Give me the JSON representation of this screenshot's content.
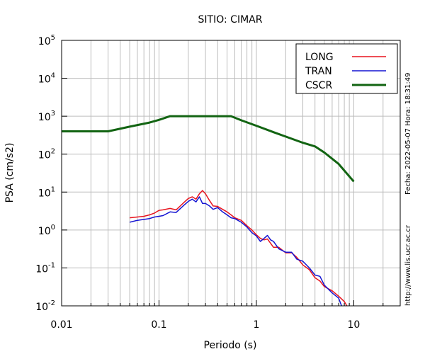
{
  "chart_data": {
    "type": "line",
    "title": "SITIO: CIMAR",
    "xlabel": "Periodo (s)",
    "ylabel": "PSA (cm/s2)",
    "x_scale": "log",
    "y_scale": "log",
    "xlim": [
      0.01,
      30
    ],
    "ylim": [
      0.01,
      100000
    ],
    "x_ticks": [
      {
        "value": 0.01,
        "label": "0.01"
      },
      {
        "value": 0.1,
        "label": "0.1"
      },
      {
        "value": 1,
        "label": "1"
      },
      {
        "value": 10,
        "label": "10"
      }
    ],
    "y_ticks": [
      {
        "value": 0.01,
        "base": "10",
        "exp": "-2"
      },
      {
        "value": 0.1,
        "base": "10",
        "exp": "-1"
      },
      {
        "value": 1,
        "base": "10",
        "exp": "0"
      },
      {
        "value": 10,
        "base": "10",
        "exp": "1"
      },
      {
        "value": 100,
        "base": "10",
        "exp": "2"
      },
      {
        "value": 1000,
        "base": "10",
        "exp": "3"
      },
      {
        "value": 10000,
        "base": "10",
        "exp": "4"
      },
      {
        "value": 100000,
        "base": "10",
        "exp": "5"
      }
    ],
    "grid": true,
    "legend_position": "top-right",
    "series": [
      {
        "name": "LONG",
        "color": "#e8141e",
        "x": [
          0.05,
          0.06,
          0.07,
          0.08,
          0.09,
          0.1,
          0.11,
          0.13,
          0.15,
          0.18,
          0.2,
          0.22,
          0.24,
          0.26,
          0.28,
          0.3,
          0.33,
          0.36,
          0.4,
          0.45,
          0.5,
          0.55,
          0.6,
          0.7,
          0.8,
          0.9,
          1.0,
          1.1,
          1.2,
          1.3,
          1.5,
          1.7,
          2.0,
          2.3,
          2.6,
          3.0,
          3.5,
          4.0,
          4.5,
          5.0,
          6.0,
          7.0,
          8.0,
          8.5
        ],
        "values": [
          2.1,
          2.2,
          2.3,
          2.5,
          2.8,
          3.3,
          3.4,
          3.7,
          3.4,
          5.3,
          6.8,
          7.5,
          6.5,
          9.0,
          11.0,
          9.0,
          6.0,
          4.3,
          4.2,
          3.5,
          3.0,
          2.5,
          2.1,
          1.8,
          1.3,
          1.0,
          0.75,
          0.6,
          0.55,
          0.58,
          0.35,
          0.35,
          0.25,
          0.25,
          0.19,
          0.12,
          0.09,
          0.055,
          0.045,
          0.032,
          0.025,
          0.018,
          0.013,
          0.01
        ]
      },
      {
        "name": "TRAN",
        "color": "#1414d2",
        "x": [
          0.05,
          0.06,
          0.07,
          0.08,
          0.09,
          0.1,
          0.11,
          0.13,
          0.15,
          0.18,
          0.2,
          0.22,
          0.24,
          0.26,
          0.28,
          0.3,
          0.33,
          0.36,
          0.4,
          0.45,
          0.5,
          0.55,
          0.6,
          0.7,
          0.8,
          0.9,
          1.0,
          1.1,
          1.2,
          1.3,
          1.4,
          1.5,
          1.7,
          2.0,
          2.3,
          2.6,
          3.0,
          3.5,
          4.0,
          4.5,
          5.0,
          6.0,
          7.0,
          7.5
        ],
        "values": [
          1.6,
          1.8,
          1.9,
          2.0,
          2.2,
          2.3,
          2.4,
          3.0,
          2.9,
          4.5,
          5.7,
          6.5,
          5.5,
          7.5,
          5.0,
          5.0,
          4.3,
          3.5,
          3.9,
          3.0,
          2.5,
          2.1,
          2.0,
          1.6,
          1.2,
          0.85,
          0.7,
          0.5,
          0.6,
          0.72,
          0.55,
          0.5,
          0.32,
          0.26,
          0.26,
          0.17,
          0.15,
          0.1,
          0.065,
          0.06,
          0.035,
          0.022,
          0.016,
          0.01
        ]
      },
      {
        "name": "CSCR",
        "color": "#126412",
        "x": [
          0.01,
          0.03,
          0.05,
          0.08,
          0.1,
          0.13,
          0.2,
          0.3,
          0.55,
          0.7,
          1.0,
          1.5,
          2.0,
          3.0,
          4.0,
          5.0,
          7.0,
          10.0
        ],
        "values": [
          400,
          400,
          530,
          680,
          800,
          1000,
          1000,
          1000,
          1000,
          780,
          560,
          380,
          290,
          200,
          160,
          110,
          55,
          19
        ]
      }
    ]
  },
  "side_texts": {
    "date_label": "Fecha: 2022-05-07 Hora: 18:31:49",
    "url_label": "http://www.lis.ucr.ac.cr"
  }
}
